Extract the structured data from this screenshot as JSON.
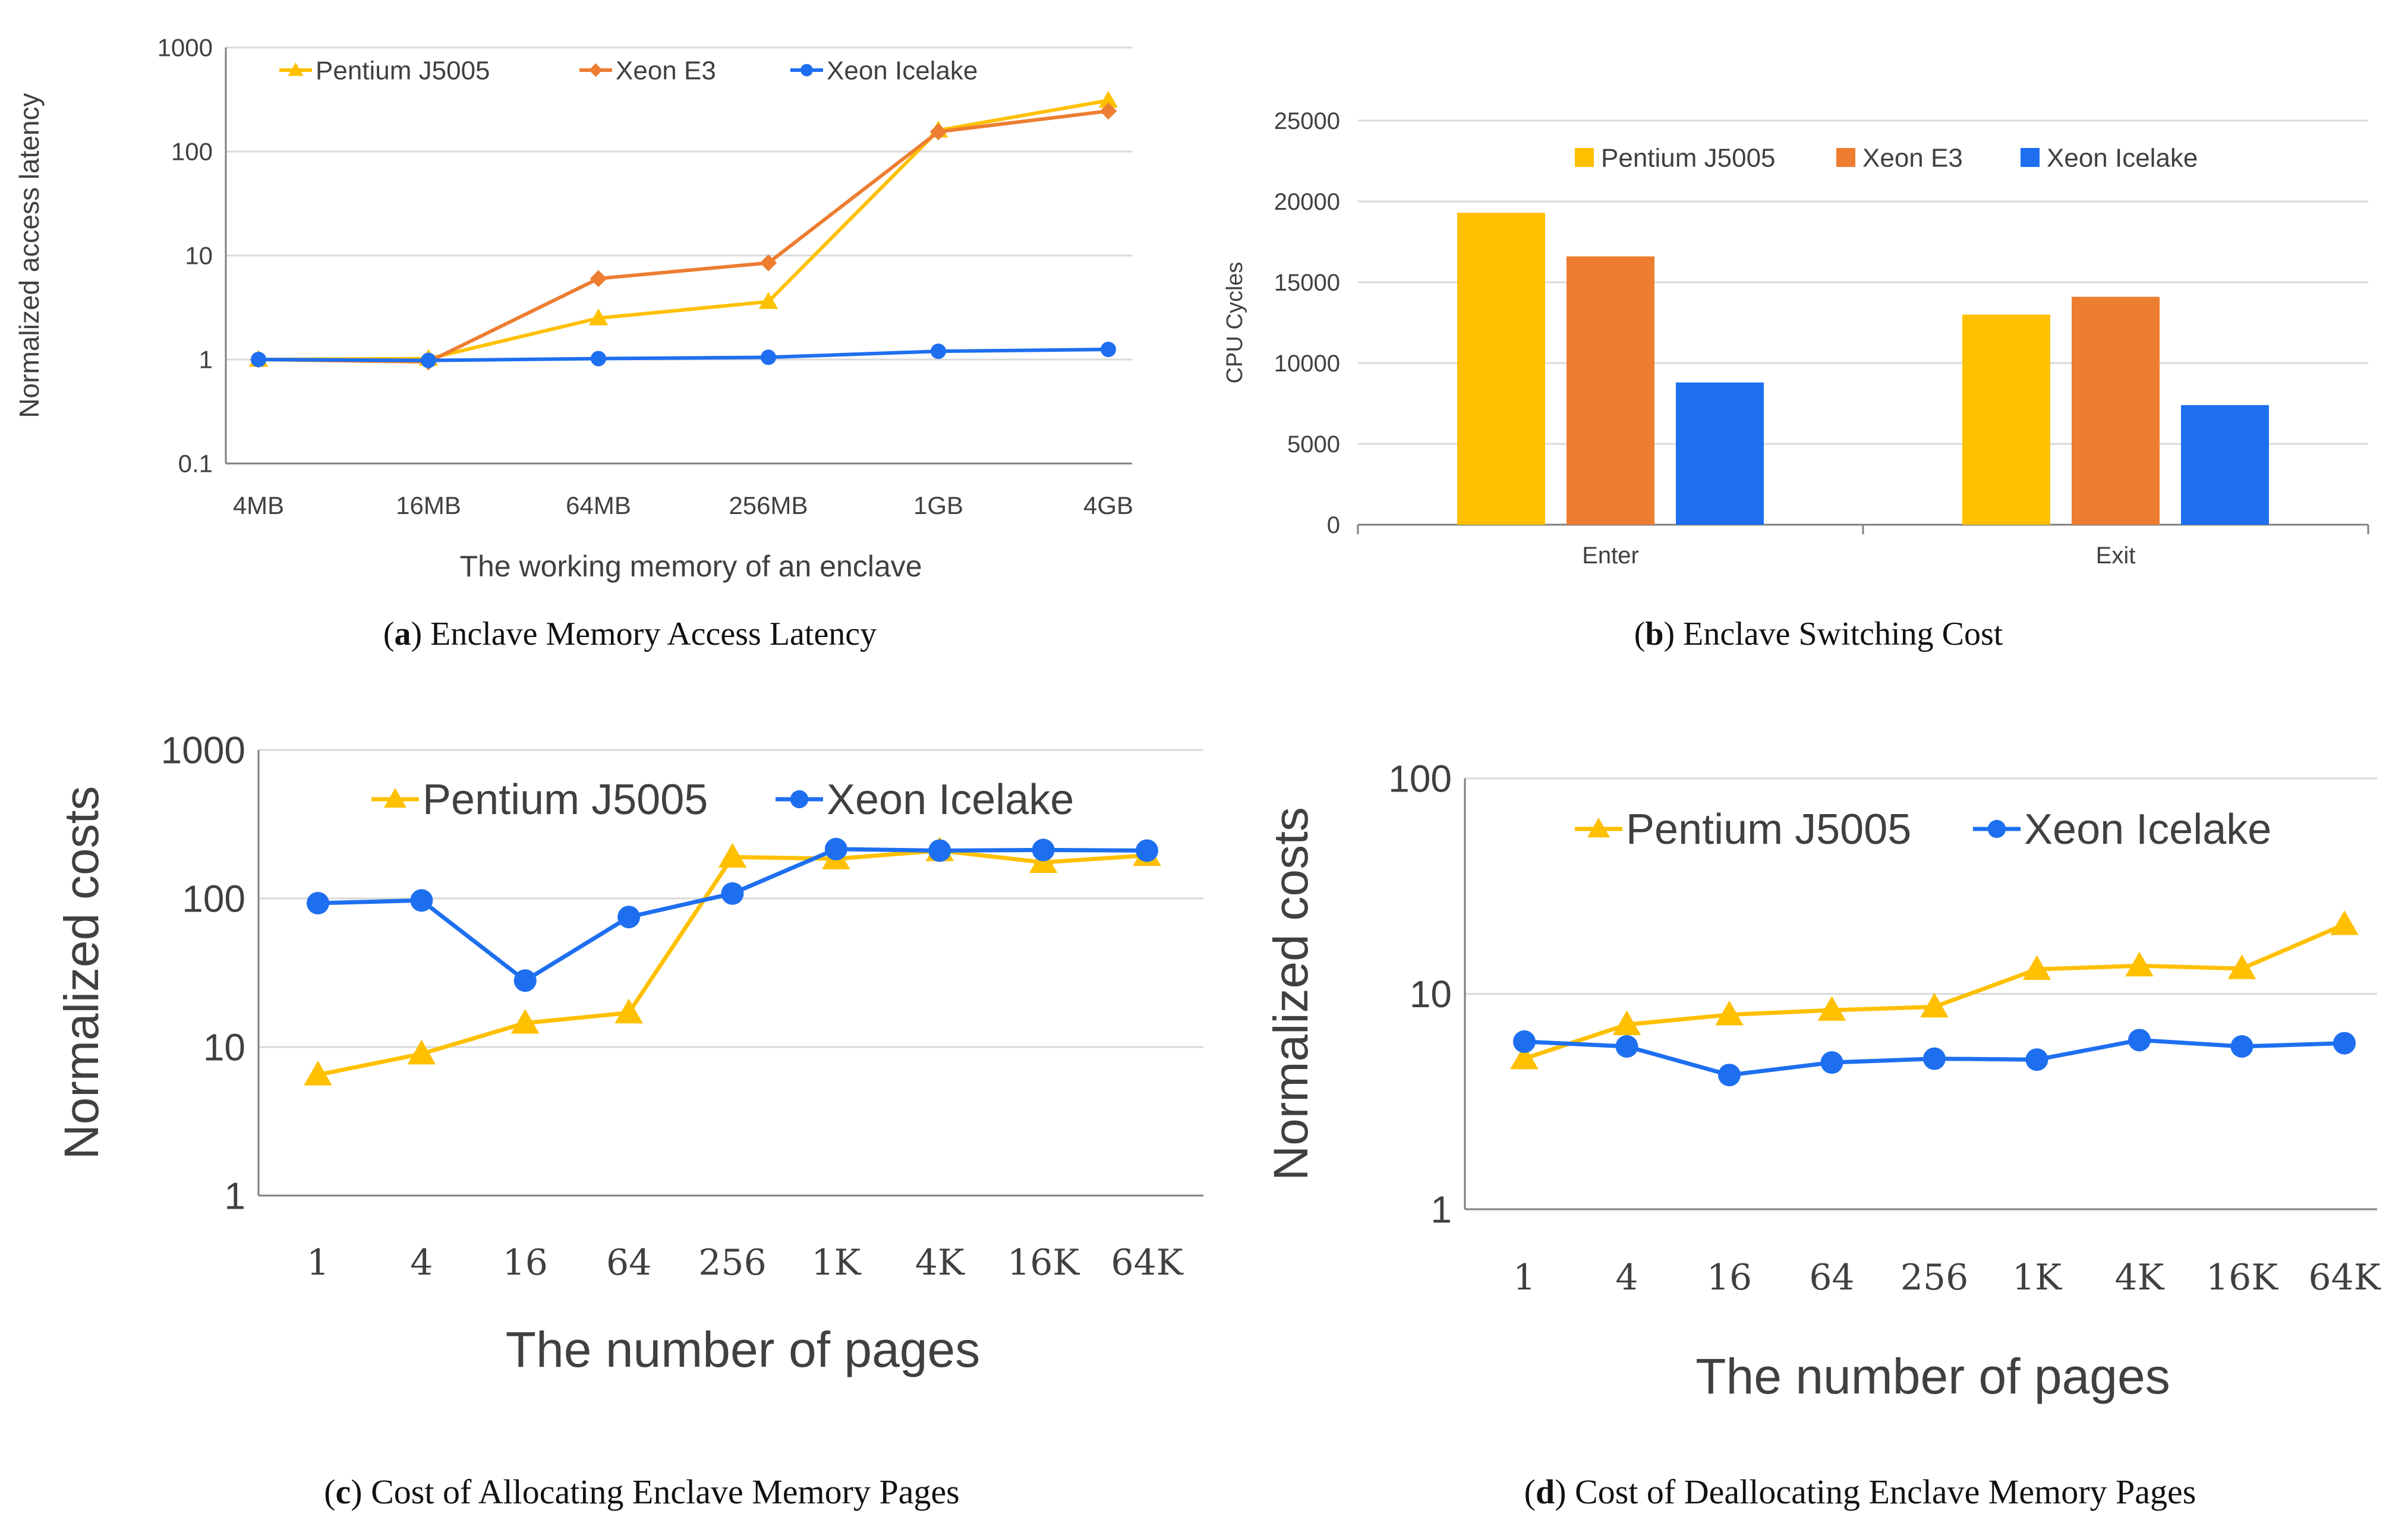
{
  "colors": {
    "pentium": "#FFC000",
    "xeon_e3": "#ED7D31",
    "icelake": "#1E6FF0",
    "grid": "#D9D9D9",
    "axis": "#7F7F7F",
    "text": "#404040"
  },
  "chart_data": [
    {
      "id": "a",
      "type": "line",
      "yscale": "log",
      "caption_letter": "a",
      "caption_text": "Enclave Memory Access Latency",
      "xlabel": "The working memory of an enclave",
      "ylabel": "Normalized access latency",
      "categories": [
        "4MB",
        "16MB",
        "64MB",
        "256MB",
        "1GB",
        "4GB"
      ],
      "yticks": [
        "0.1",
        "1",
        "10",
        "100",
        "1000"
      ],
      "ylim": [
        0.1,
        1000
      ],
      "series": [
        {
          "name": "Pentium J5005",
          "marker": "triangle",
          "color_key": "pentium",
          "values": [
            1,
            1.02,
            2.5,
            3.6,
            160,
            310
          ]
        },
        {
          "name": "Xeon E3",
          "marker": "diamond",
          "color_key": "xeon_e3",
          "values": [
            1,
            0.95,
            6,
            8.5,
            155,
            245
          ]
        },
        {
          "name": "Xeon Icelake",
          "marker": "circle",
          "color_key": "icelake",
          "values": [
            1,
            0.98,
            1.02,
            1.05,
            1.2,
            1.25
          ]
        }
      ]
    },
    {
      "id": "b",
      "type": "bar",
      "caption_letter": "b",
      "caption_text": "Enclave Switching Cost",
      "xlabel": "",
      "ylabel": "CPU Cycles",
      "categories": [
        "Enter",
        "Exit"
      ],
      "yticks": [
        "0",
        "5000",
        "10000",
        "15000",
        "20000",
        "25000"
      ],
      "ylim": [
        0,
        25000
      ],
      "series": [
        {
          "name": "Pentium J5005",
          "color_key": "pentium",
          "values": [
            19300,
            13000
          ]
        },
        {
          "name": "Xeon E3",
          "color_key": "xeon_e3",
          "values": [
            16600,
            14100
          ]
        },
        {
          "name": "Xeon Icelake",
          "color_key": "icelake",
          "values": [
            8800,
            7400
          ]
        }
      ]
    },
    {
      "id": "c",
      "type": "line",
      "yscale": "log",
      "caption_letter": "c",
      "caption_text": "Cost of Allocating Enclave Memory Pages",
      "xlabel": "The number of pages",
      "ylabel": "Normalized costs",
      "categories": [
        "1",
        "4",
        "16",
        "64",
        "256",
        "1K",
        "4K",
        "16K",
        "64K"
      ],
      "yticks": [
        "1",
        "10",
        "100",
        "1000"
      ],
      "ylim": [
        1,
        1000
      ],
      "series": [
        {
          "name": "Pentium J5005",
          "marker": "triangle",
          "color_key": "pentium",
          "values": [
            6.5,
            9,
            14.5,
            17,
            190,
            185,
            210,
            175,
            195
          ]
        },
        {
          "name": "Xeon Icelake",
          "marker": "circle",
          "color_key": "icelake",
          "values": [
            93,
            97,
            28,
            75,
            108,
            215,
            210,
            212,
            210
          ]
        }
      ]
    },
    {
      "id": "d",
      "type": "line",
      "yscale": "log",
      "caption_letter": "d",
      "caption_text": "Cost of Deallocating Enclave Memory Pages",
      "xlabel": "The number of pages",
      "ylabel": "Normalized costs",
      "categories": [
        "1",
        "4",
        "16",
        "64",
        "256",
        "1K",
        "4K",
        "16K",
        "64K"
      ],
      "yticks": [
        "1",
        "10",
        "100"
      ],
      "ylim": [
        1,
        100
      ],
      "series": [
        {
          "name": "Pentium J5005",
          "marker": "triangle",
          "color_key": "pentium",
          "values": [
            5,
            7.2,
            8,
            8.4,
            8.7,
            13,
            13.5,
            13.1,
            21
          ]
        },
        {
          "name": "Xeon Icelake",
          "marker": "circle",
          "color_key": "icelake",
          "values": [
            6,
            5.7,
            4.2,
            4.8,
            5,
            4.95,
            6.1,
            5.7,
            5.9
          ]
        }
      ]
    }
  ]
}
